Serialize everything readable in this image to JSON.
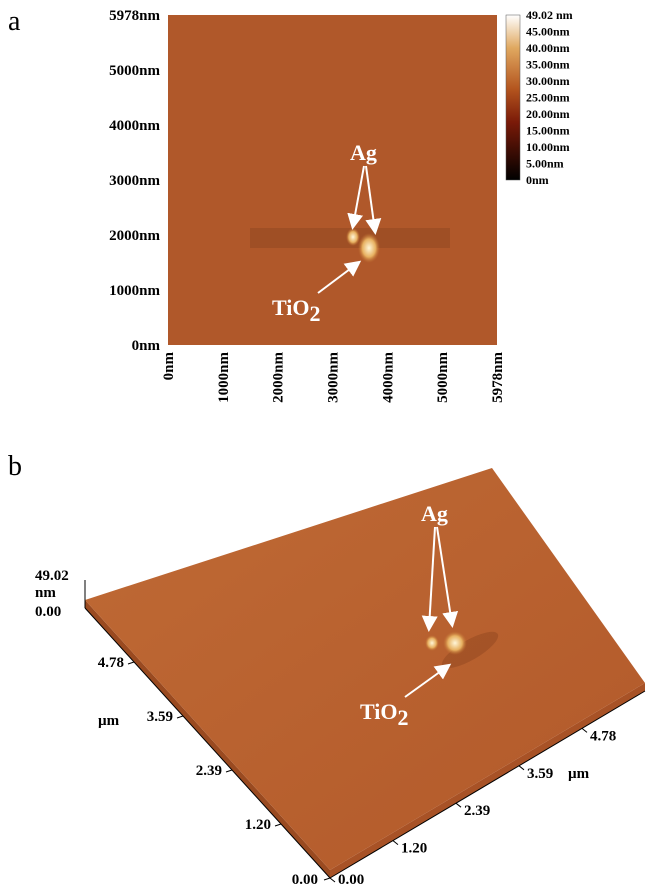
{
  "panel_a": {
    "label": "a",
    "y_ticks": [
      "5978nm",
      "5000nm",
      "4000nm",
      "3000nm",
      "2000nm",
      "1000nm",
      "0nm"
    ],
    "x_ticks": [
      "0nm",
      "1000nm",
      "2000nm",
      "3000nm",
      "4000nm",
      "5000nm",
      "5978nm"
    ],
    "colorbar_labels": [
      "49.02 nm",
      "45.00nm",
      "40.00nm",
      "35.00nm",
      "30.00nm",
      "25.00nm",
      "20.00nm",
      "15.00nm",
      "10.00nm",
      "5.00nm",
      "0nm"
    ],
    "annotation_ag": "Ag",
    "annotation_tio2": "TiO",
    "annotation_tio2_subscript": "2"
  },
  "panel_b": {
    "label": "b",
    "z_top": "49.02",
    "z_unit": "nm",
    "z_bottom": "0.00",
    "left_axis_ticks": [
      "4.78",
      "3.59",
      "2.39",
      "1.20",
      "0.00"
    ],
    "left_axis_unit": "µm",
    "right_axis_ticks": [
      "0.00",
      "1.20",
      "2.39",
      "3.59",
      "4.78"
    ],
    "right_axis_unit": "µm",
    "annotation_ag": "Ag",
    "annotation_tio2": "TiO",
    "annotation_tio2_subscript": "2"
  }
}
